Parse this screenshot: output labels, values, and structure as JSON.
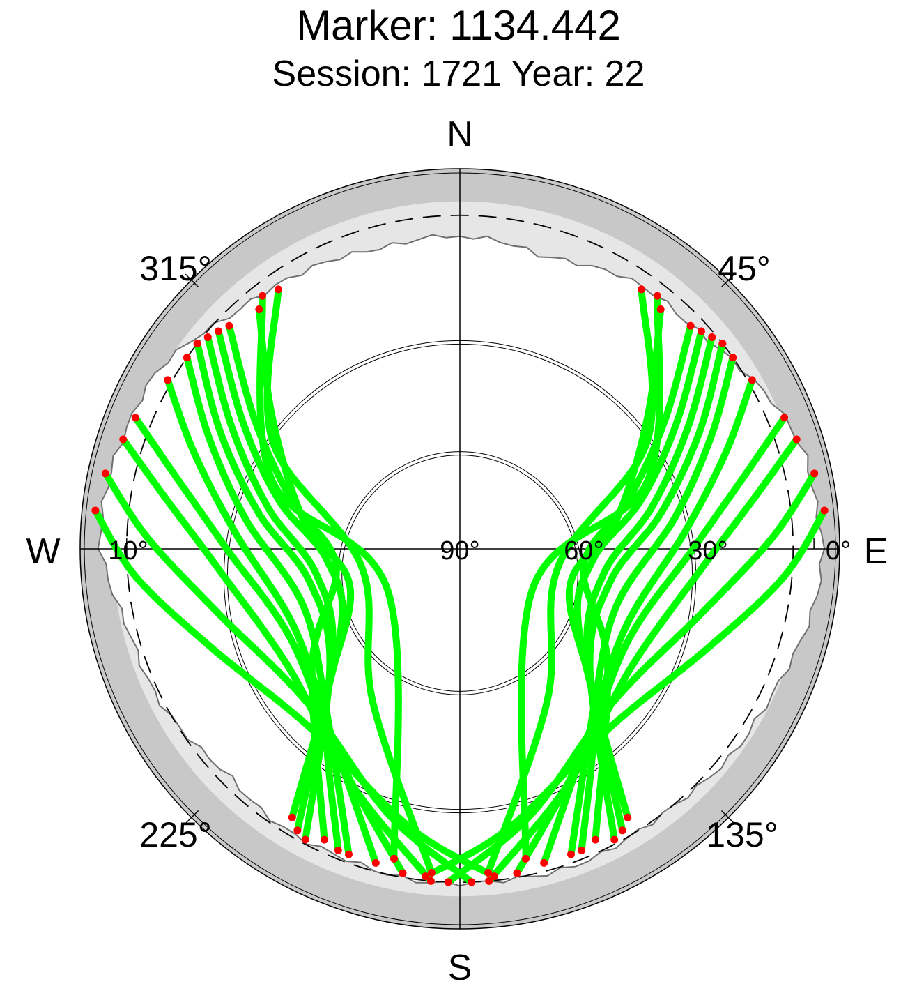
{
  "header": {
    "title": "Marker: 1134.442",
    "subtitle": "Session: 1721 Year: 22"
  },
  "chart_data": {
    "type": "scatter",
    "projection": "polar sky plot (azimuth clockwise from North, elevation 90° at center)",
    "cardinal_labels": {
      "north": "N",
      "east": "E",
      "south": "S",
      "west": "W"
    },
    "azimuth_tick_labels": [
      "45°",
      "135°",
      "225°",
      "315°"
    ],
    "elevation_tick_labels_east": [
      "0°",
      "30°",
      "60°",
      "90°"
    ],
    "elevation_tick_labels_west": [
      "10°"
    ],
    "elevation_range": [
      0,
      90
    ],
    "colors": {
      "track": "#00ff00",
      "track_end_marker": "#ff0000",
      "mask_band": "#c8c8c8",
      "horizon_fill": "#e6e6e6",
      "horizon_line": "#707070",
      "grid": "#000000"
    },
    "elevation_mask_deg": 10,
    "horizon_profile": [
      {
        "az": 0,
        "el": 15
      },
      {
        "az": 15,
        "el": 17
      },
      {
        "az": 30,
        "el": 14
      },
      {
        "az": 45,
        "el": 13
      },
      {
        "az": 60,
        "el": 9
      },
      {
        "az": 75,
        "el": 4
      },
      {
        "az": 90,
        "el": 3
      },
      {
        "az": 105,
        "el": 5
      },
      {
        "az": 120,
        "el": 8
      },
      {
        "az": 135,
        "el": 9
      },
      {
        "az": 150,
        "el": 10
      },
      {
        "az": 165,
        "el": 9
      },
      {
        "az": 180,
        "el": 10
      },
      {
        "az": 195,
        "el": 10
      },
      {
        "az": 210,
        "el": 11
      },
      {
        "az": 225,
        "el": 12
      },
      {
        "az": 240,
        "el": 10
      },
      {
        "az": 255,
        "el": 8
      },
      {
        "az": 270,
        "el": 4
      },
      {
        "az": 285,
        "el": 4
      },
      {
        "az": 300,
        "el": 6
      },
      {
        "az": 315,
        "el": 11
      },
      {
        "az": 330,
        "el": 14
      },
      {
        "az": 345,
        "el": 15
      }
    ],
    "tracks": [
      {
        "az": [
          48,
          60,
          75,
          95,
          125,
          148
        ],
        "el": [
          12,
          30,
          45,
          58,
          55,
          14
        ]
      },
      {
        "az": [
          50,
          62,
          78,
          100,
          130,
          150
        ],
        "el": [
          11,
          28,
          43,
          55,
          50,
          12
        ]
      },
      {
        "az": [
          52,
          64,
          80,
          102,
          132,
          152
        ],
        "el": [
          10,
          26,
          41,
          53,
          48,
          11
        ]
      },
      {
        "az": [
          46,
          58,
          74,
          98,
          128,
          155
        ],
        "el": [
          13,
          32,
          48,
          60,
          45,
          13
        ]
      },
      {
        "az": [
          55,
          66,
          82,
          110,
          140,
          160
        ],
        "el": [
          10,
          24,
          38,
          50,
          40,
          12
        ]
      },
      {
        "az": [
          60,
          70,
          86,
          115,
          145,
          165
        ],
        "el": [
          9,
          22,
          36,
          46,
          36,
          12
        ]
      },
      {
        "az": [
          68,
          76,
          90,
          118,
          150,
          170
        ],
        "el": [
          6,
          20,
          34,
          44,
          32,
          11
        ]
      },
      {
        "az": [
          72,
          80,
          95,
          125,
          155,
          175
        ],
        "el": [
          5,
          18,
          32,
          40,
          28,
          10
        ]
      },
      {
        "az": [
          78,
          88,
          105,
          135,
          165,
          182
        ],
        "el": [
          3,
          15,
          30,
          38,
          24,
          10
        ]
      },
      {
        "az": [
          84,
          95,
          112,
          140,
          170,
          186
        ],
        "el": [
          2,
          12,
          26,
          34,
          22,
          11
        ]
      },
      {
        "az": [
          312,
          300,
          285,
          265,
          235,
          212
        ],
        "el": [
          12,
          30,
          45,
          58,
          55,
          14
        ]
      },
      {
        "az": [
          310,
          298,
          282,
          260,
          230,
          210
        ],
        "el": [
          11,
          28,
          43,
          55,
          50,
          12
        ]
      },
      {
        "az": [
          308,
          296,
          280,
          258,
          228,
          208
        ],
        "el": [
          10,
          26,
          41,
          53,
          48,
          11
        ]
      },
      {
        "az": [
          314,
          302,
          286,
          262,
          232,
          205
        ],
        "el": [
          13,
          32,
          48,
          60,
          45,
          13
        ]
      },
      {
        "az": [
          305,
          294,
          278,
          250,
          220,
          200
        ],
        "el": [
          10,
          24,
          38,
          50,
          40,
          12
        ]
      },
      {
        "az": [
          300,
          290,
          274,
          245,
          215,
          195
        ],
        "el": [
          9,
          22,
          36,
          46,
          36,
          12
        ]
      },
      {
        "az": [
          292,
          284,
          270,
          242,
          210,
          190
        ],
        "el": [
          6,
          20,
          34,
          44,
          32,
          11
        ]
      },
      {
        "az": [
          288,
          280,
          265,
          235,
          205,
          185
        ],
        "el": [
          5,
          18,
          32,
          40,
          28,
          10
        ]
      },
      {
        "az": [
          282,
          272,
          255,
          225,
          195,
          178
        ],
        "el": [
          3,
          15,
          30,
          38,
          24,
          10
        ]
      },
      {
        "az": [
          276,
          265,
          248,
          220,
          190,
          174
        ],
        "el": [
          2,
          12,
          26,
          34,
          22,
          11
        ]
      },
      {
        "az": [
          40,
          55,
          80,
          110,
          140,
          158
        ],
        "el": [
          15,
          35,
          52,
          62,
          40,
          12
        ]
      },
      {
        "az": [
          320,
          305,
          280,
          250,
          220,
          202
        ],
        "el": [
          15,
          35,
          52,
          62,
          40,
          12
        ]
      },
      {
        "az": [
          35,
          60,
          100,
          150,
          175
        ],
        "el": [
          14,
          38,
          66,
          48,
          12
        ]
      },
      {
        "az": [
          325,
          300,
          260,
          210,
          185
        ],
        "el": [
          14,
          38,
          66,
          48,
          12
        ]
      },
      {
        "az": [
          38,
          70,
          120,
          168
        ],
        "el": [
          13,
          42,
          70,
          14
        ]
      },
      {
        "az": [
          322,
          290,
          240,
          192
        ],
        "el": [
          13,
          42,
          70,
          14
        ]
      }
    ]
  }
}
